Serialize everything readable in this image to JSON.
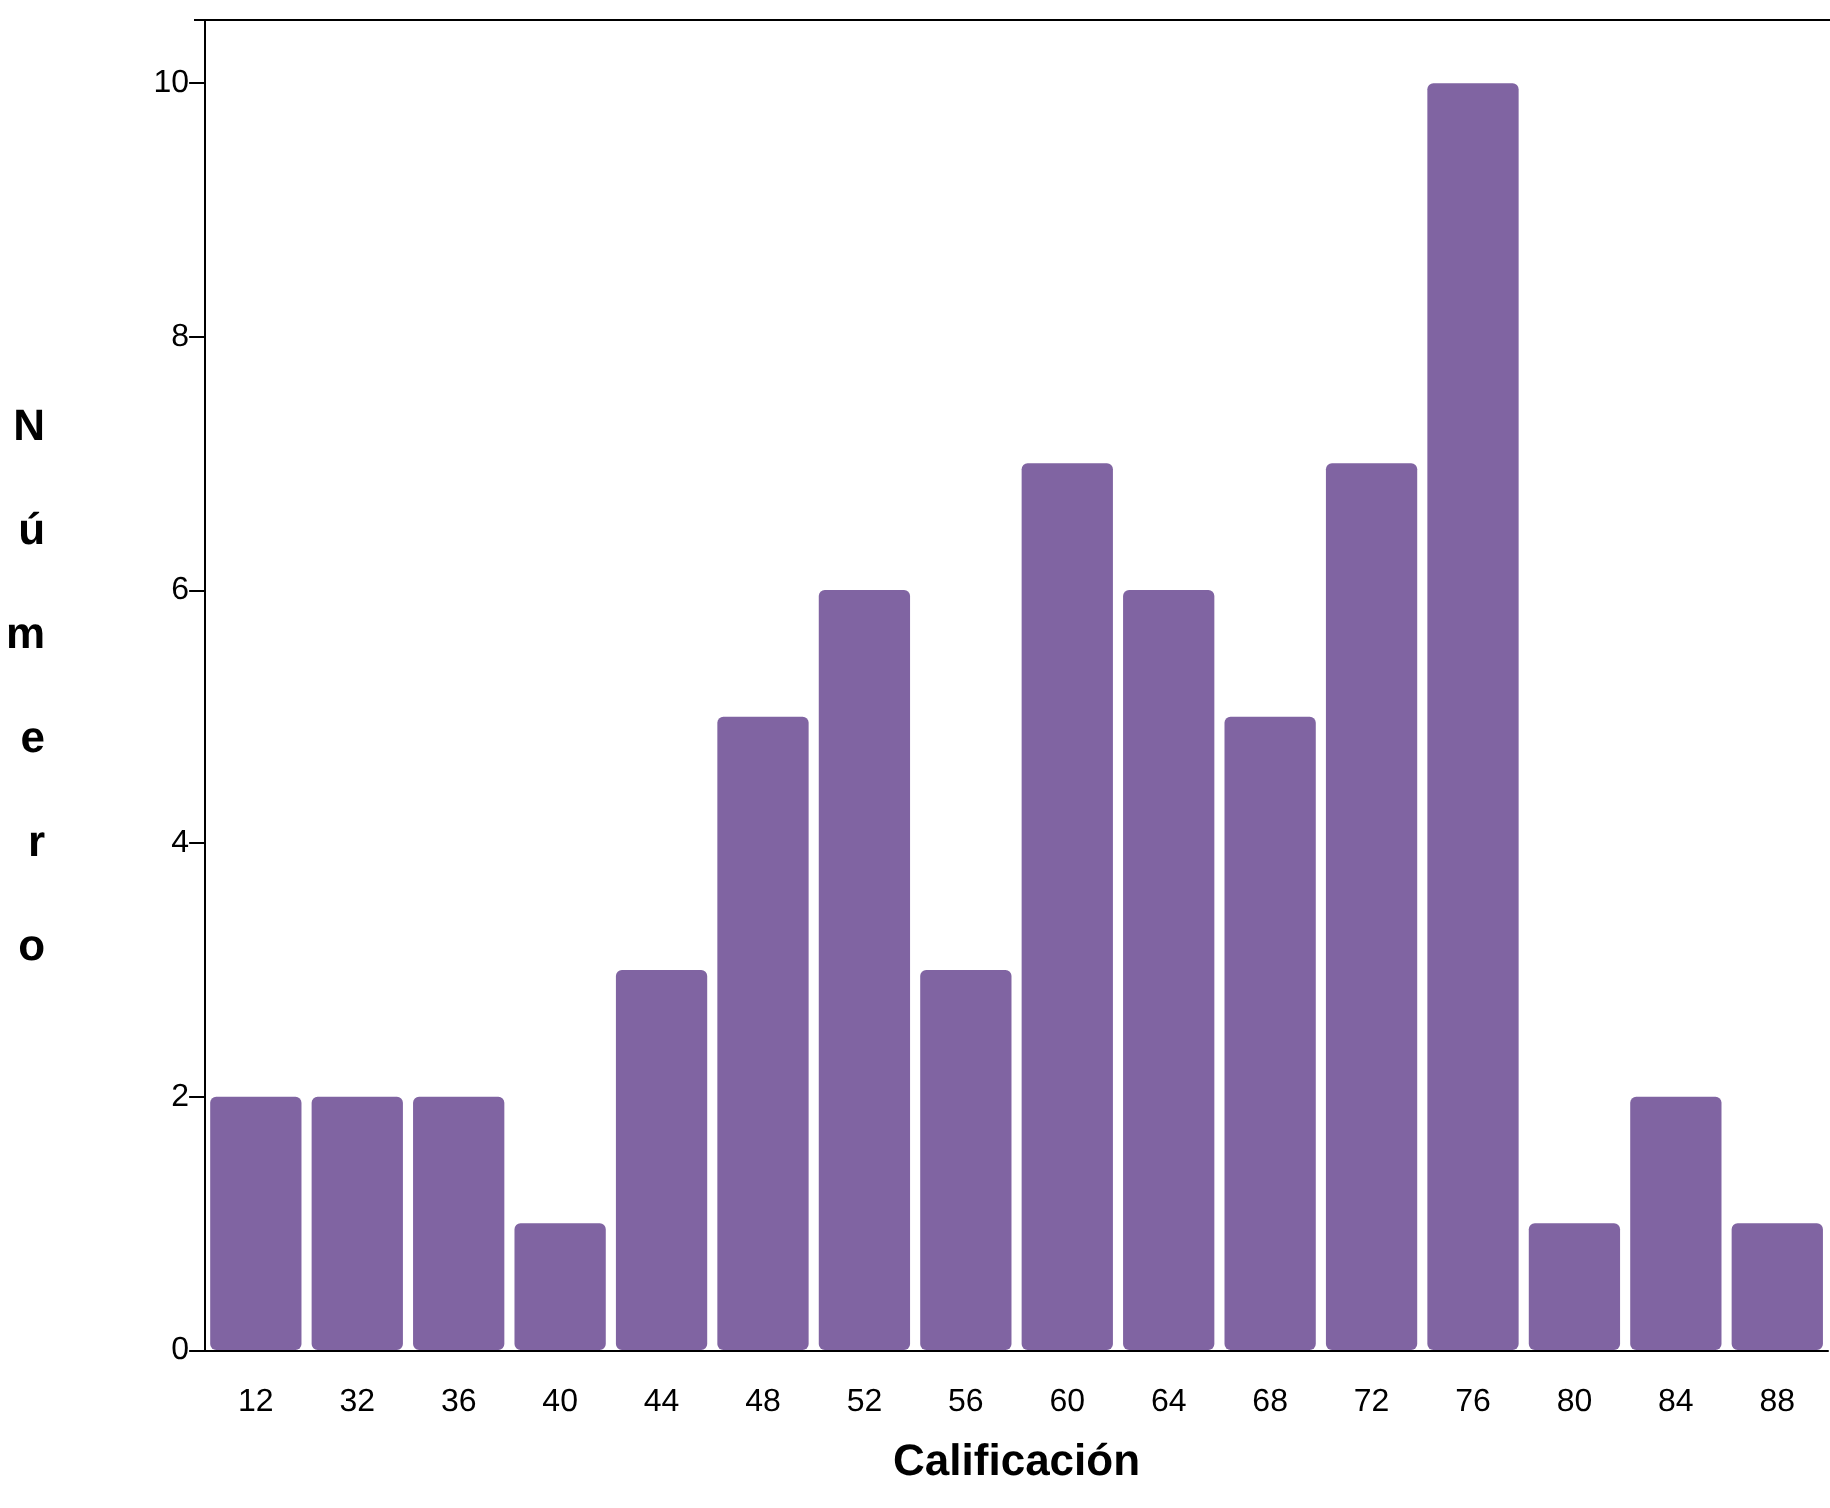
{
  "chart_data": {
    "type": "bar",
    "xlabel": "Calificación",
    "ylabel": "Número",
    "categories": [
      "12",
      "32",
      "36",
      "40",
      "44",
      "48",
      "52",
      "56",
      "60",
      "64",
      "68",
      "72",
      "76",
      "80",
      "84",
      "88"
    ],
    "values": [
      2,
      2,
      2,
      1,
      3,
      5,
      6,
      3,
      7,
      6,
      5,
      7,
      10,
      1,
      2,
      1
    ],
    "color": "#8064a2",
    "ylim": [
      0,
      10.5
    ],
    "yticks": [
      0,
      2,
      4,
      6,
      8,
      10
    ],
    "grid": false
  }
}
